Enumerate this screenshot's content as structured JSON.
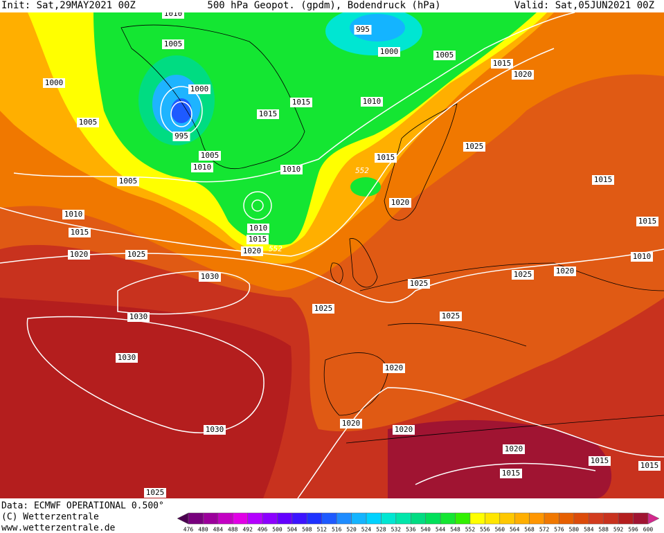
{
  "header": {
    "init": "Init: Sat,29MAY2021 00Z",
    "title": "500 hPa Geopot. (gpdm), Bodendruck (hPa)",
    "valid": "Valid: Sat,05JUN2021 00Z"
  },
  "footer": {
    "data": "Data: ECMWF OPERATIONAL 0.500°",
    "copyright": "(C) Wetterzentrale",
    "url": "www.wetterzentrale.de"
  },
  "isobars": {
    "labels": [
      1010,
      995,
      1005,
      1000,
      1005,
      1015,
      1020,
      1000,
      1000,
      1015,
      1010,
      1015,
      1005,
      995,
      1025,
      1005,
      1010,
      1010,
      1015,
      552,
      1005,
      1015,
      1020,
      1010,
      1015,
      1015,
      1010,
      1015,
      1020,
      552,
      1020,
      1025,
      1010,
      1020,
      1025,
      1030,
      1025,
      1025,
      1025,
      1030,
      1030,
      1020,
      1020,
      1020,
      1030,
      1020,
      1015,
      1015,
      1015,
      1025
    ]
  },
  "colorbar": {
    "levels": [
      476,
      480,
      484,
      488,
      492,
      496,
      500,
      504,
      508,
      512,
      516,
      520,
      524,
      528,
      532,
      536,
      540,
      544,
      548,
      552,
      556,
      560,
      564,
      568,
      572,
      576,
      580,
      584,
      588,
      592,
      596,
      600
    ],
    "colors": [
      "#4b0050",
      "#78007d",
      "#9b009b",
      "#c300c3",
      "#e100e6",
      "#b400ff",
      "#8c00ff",
      "#6400ff",
      "#3c14ff",
      "#1e32ff",
      "#1e5aff",
      "#1e8cff",
      "#14b4ff",
      "#00d2ff",
      "#00e6d2",
      "#00e6aa",
      "#00dc82",
      "#00e05a",
      "#14e632",
      "#32f000",
      "#ffff00",
      "#ffe600",
      "#ffc800",
      "#ffaf00",
      "#ff9600",
      "#f07800",
      "#e65f00",
      "#dc4b0a",
      "#d23c1e",
      "#c8321e",
      "#b41e1e",
      "#a01432",
      "#d2288c"
    ]
  }
}
